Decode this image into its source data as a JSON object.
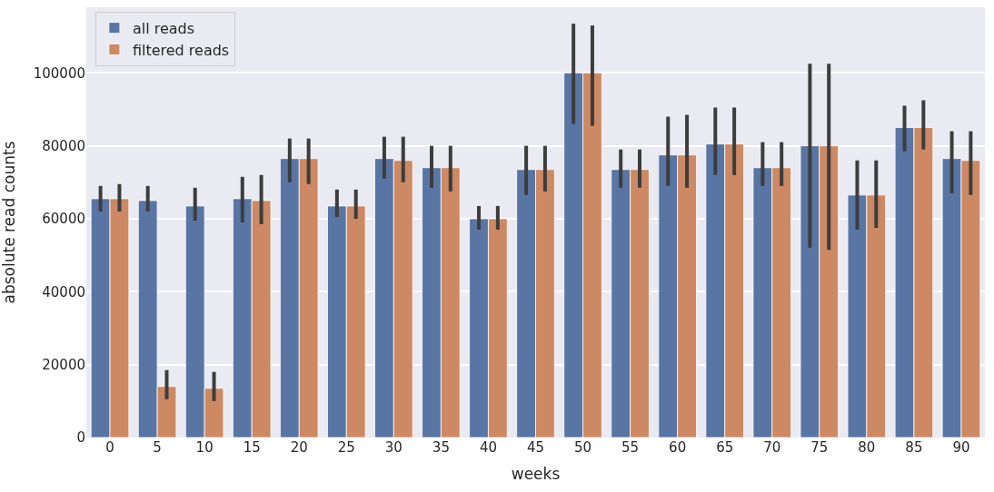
{
  "chart_data": {
    "type": "bar",
    "xlabel": "weeks",
    "ylabel": "absolute read counts",
    "categories": [
      "0",
      "5",
      "10",
      "15",
      "20",
      "25",
      "30",
      "35",
      "40",
      "45",
      "50",
      "55",
      "60",
      "65",
      "70",
      "75",
      "80",
      "85",
      "90"
    ],
    "series": [
      {
        "name": "all reads",
        "color": "#5975a4",
        "values": [
          65500,
          65000,
          63500,
          65500,
          76500,
          63500,
          76500,
          74000,
          60000,
          73500,
          100000,
          73500,
          77500,
          80500,
          74000,
          80000,
          66500,
          85000,
          76500
        ],
        "errors": [
          [
            62000,
            69000
          ],
          [
            62000,
            69000
          ],
          [
            59500,
            68500
          ],
          [
            59000,
            71500
          ],
          [
            70000,
            82000
          ],
          [
            60500,
            68000
          ],
          [
            71000,
            82500
          ],
          [
            68500,
            80000
          ],
          [
            57000,
            63500
          ],
          [
            66500,
            80000
          ],
          [
            86000,
            113500
          ],
          [
            68500,
            79000
          ],
          [
            69000,
            88000
          ],
          [
            72000,
            90500
          ],
          [
            69000,
            81000
          ],
          [
            52000,
            102500
          ],
          [
            57000,
            76000
          ],
          [
            78500,
            91000
          ],
          [
            67000,
            84000
          ]
        ]
      },
      {
        "name": "filtered reads",
        "color": "#cc8963",
        "values": [
          65500,
          14000,
          13500,
          65000,
          76500,
          63500,
          76000,
          74000,
          60000,
          73500,
          100000,
          73500,
          77500,
          80500,
          74000,
          80000,
          66500,
          85000,
          76000
        ],
        "errors": [
          [
            62000,
            69500
          ],
          [
            10500,
            18500
          ],
          [
            10000,
            18000
          ],
          [
            58500,
            72000
          ],
          [
            69500,
            82000
          ],
          [
            60000,
            68000
          ],
          [
            70000,
            82500
          ],
          [
            67500,
            80000
          ],
          [
            57000,
            63500
          ],
          [
            67500,
            80000
          ],
          [
            85500,
            113000
          ],
          [
            68500,
            79000
          ],
          [
            68500,
            88500
          ],
          [
            72000,
            90500
          ],
          [
            69000,
            81000
          ],
          [
            51500,
            102500
          ],
          [
            57500,
            76000
          ],
          [
            79000,
            92500
          ],
          [
            66500,
            84000
          ]
        ]
      }
    ],
    "ylim": [
      0,
      118000
    ],
    "yticks": [
      0,
      20000,
      40000,
      60000,
      80000,
      100000
    ],
    "grid": "y",
    "legend": "top left"
  }
}
